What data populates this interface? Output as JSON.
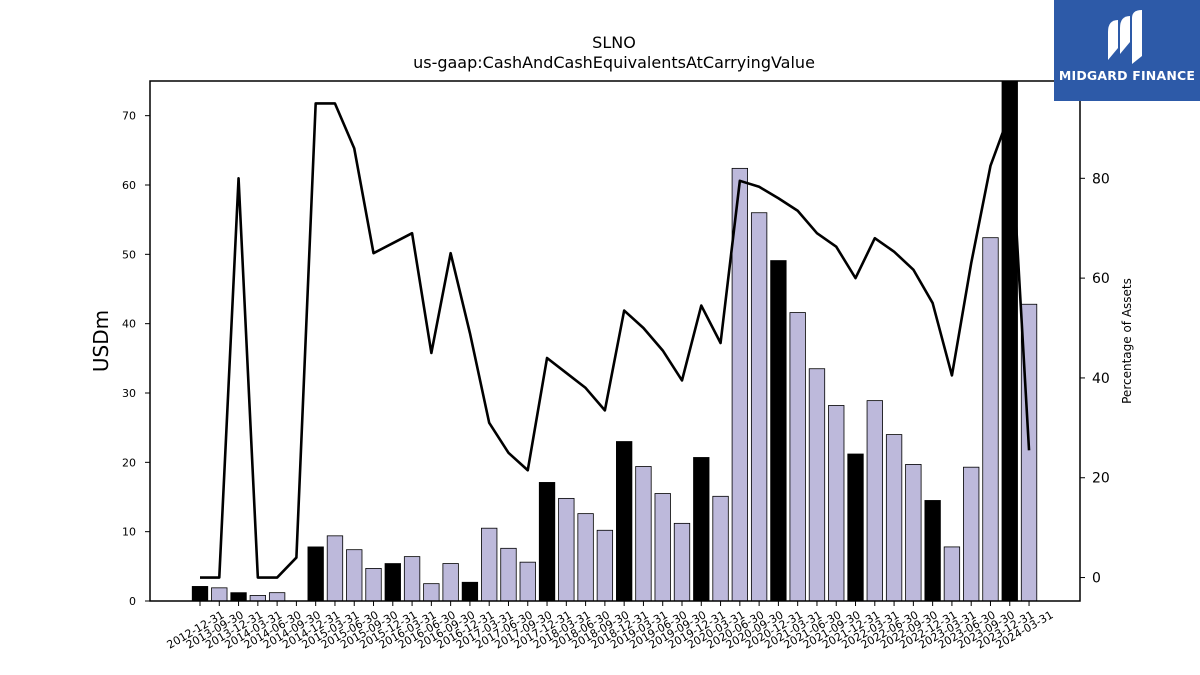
{
  "chart_data": {
    "type": "bar",
    "title": "SLNO",
    "subtitle": "us-gaap:CashAndCashEquivalentsAtCarryingValue",
    "ylabel": "USDm",
    "y2label": "Percentage of Assets",
    "ylim": [
      0,
      75
    ],
    "y2lim": [
      -4.7,
      99.5
    ],
    "yticks": [
      0,
      10,
      20,
      30,
      40,
      50,
      60,
      70
    ],
    "y2ticks": [
      0,
      20,
      40,
      60,
      80
    ],
    "categories": [
      "2012-12-31",
      "2013-09-30",
      "2013-12-31",
      "2014-03-31",
      "2014-06-30",
      "2014-09-30",
      "2014-12-31",
      "2015-03-31",
      "2015-06-30",
      "2015-09-30",
      "2015-12-31",
      "2016-03-31",
      "2016-06-30",
      "2016-09-30",
      "2016-12-31",
      "2017-03-31",
      "2017-06-30",
      "2017-09-30",
      "2017-12-31",
      "2018-03-31",
      "2018-06-30",
      "2018-09-30",
      "2018-12-31",
      "2019-03-31",
      "2019-06-30",
      "2019-09-30",
      "2019-12-31",
      "2020-03-31",
      "2020-06-30",
      "2020-09-30",
      "2020-12-31",
      "2021-03-31",
      "2021-06-30",
      "2021-09-30",
      "2021-12-31",
      "2022-03-31",
      "2022-06-30",
      "2022-09-30",
      "2022-12-31",
      "2023-03-31",
      "2023-06-30",
      "2023-09-30",
      "2023-12-31",
      "2024-03-31"
    ],
    "series": [
      {
        "type": "bar",
        "axis": "left",
        "values": [
          2.1,
          1.9,
          1.2,
          0.8,
          1.2,
          0,
          7.8,
          9.4,
          7.4,
          4.7,
          5.4,
          6.4,
          2.5,
          5.4,
          2.7,
          10.5,
          7.6,
          5.6,
          17.1,
          14.8,
          12.6,
          10.2,
          23.0,
          19.4,
          15.5,
          11.2,
          20.7,
          15.1,
          62.4,
          56.0,
          49.1,
          41.6,
          33.5,
          28.2,
          21.2,
          28.9,
          24.0,
          19.7,
          14.5,
          7.8,
          19.3,
          52.4,
          75.0,
          42.8
        ],
        "highlight": [
          true,
          false,
          true,
          false,
          false,
          false,
          true,
          false,
          false,
          false,
          true,
          false,
          false,
          false,
          true,
          false,
          false,
          false,
          true,
          false,
          false,
          false,
          true,
          false,
          false,
          false,
          true,
          false,
          false,
          false,
          true,
          false,
          false,
          false,
          true,
          false,
          false,
          false,
          true,
          false,
          false,
          false,
          true,
          false
        ]
      },
      {
        "type": "line",
        "axis": "right",
        "values": [
          0,
          0,
          80,
          0,
          0,
          4,
          95,
          95,
          86,
          65,
          67,
          69,
          45,
          65,
          49,
          31,
          25,
          21.5,
          44,
          41,
          38,
          33.5,
          53.5,
          50,
          45.5,
          39.5,
          54.5,
          47,
          79.5,
          78.3,
          76,
          73.5,
          69,
          66.3,
          60,
          68,
          65.3,
          61.7,
          55,
          40.5,
          63,
          82.5,
          93,
          25.5
        ]
      }
    ],
    "colors": {
      "bar_fill": "#bdb9db",
      "bar_highlight": "#000000",
      "line": "#000000",
      "edge": "#000000"
    },
    "grid": false
  },
  "logo": {
    "text": "MIDGARD FINANCE",
    "icon": "midgard-m-icon"
  }
}
